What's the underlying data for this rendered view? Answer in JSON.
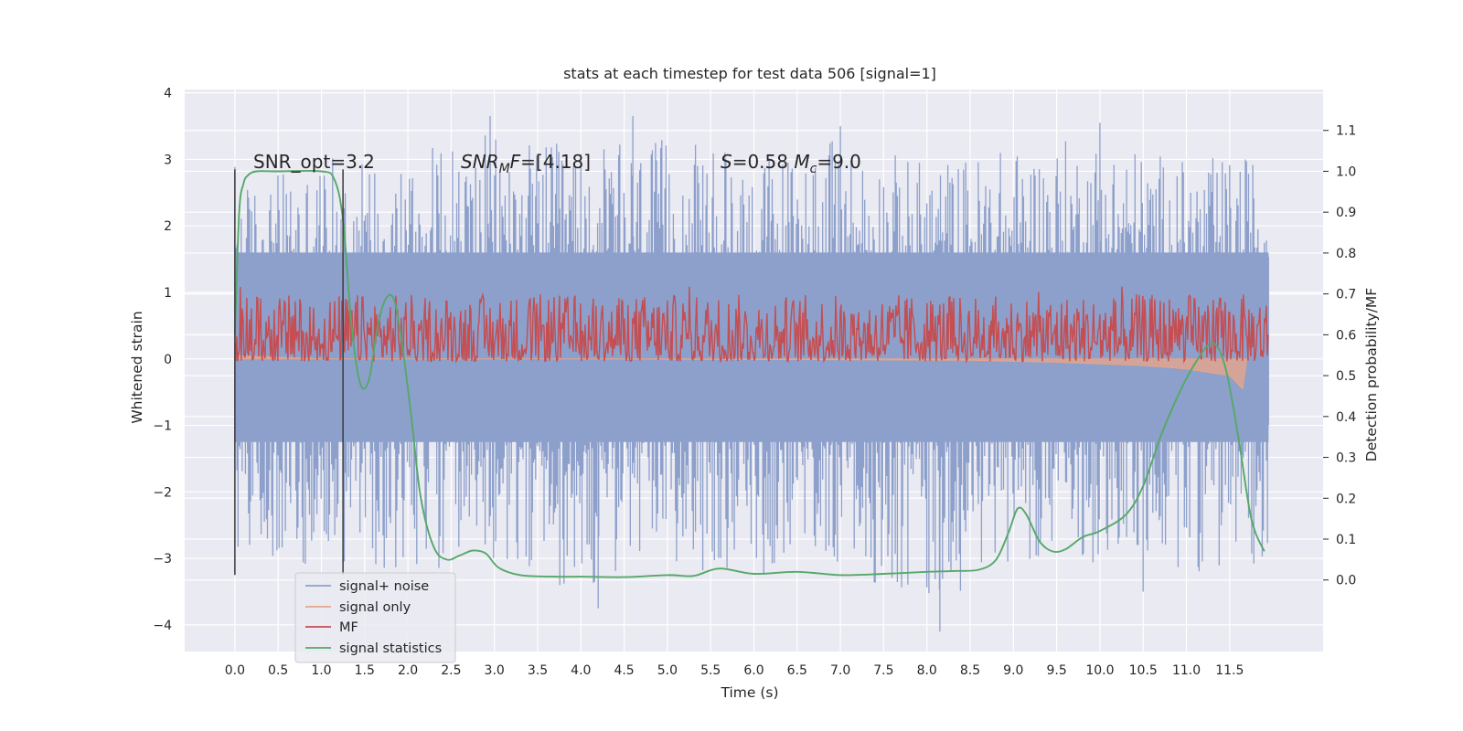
{
  "chart_data": {
    "type": "line",
    "title": "stats at each timestep for test data 506 [signal=1]",
    "xlabel": "Time (s)",
    "ylabel": "Whitened strain",
    "y2label": "Detection probability/MF",
    "xlim": [
      -0.58,
      12.58
    ],
    "ylim": [
      -4.4,
      4.05
    ],
    "y2lim": [
      -0.175,
      1.2
    ],
    "x_ticks": [
      "0.0",
      "0.5",
      "1.0",
      "1.5",
      "2.0",
      "2.5",
      "3.0",
      "3.5",
      "4.0",
      "4.5",
      "5.0",
      "5.5",
      "6.0",
      "6.5",
      "7.0",
      "7.5",
      "8.0",
      "8.5",
      "9.0",
      "9.5",
      "10.0",
      "10.5",
      "11.0",
      "11.5"
    ],
    "y_ticks": [
      "4",
      "3",
      "2",
      "1",
      "0",
      "−1",
      "−2",
      "−3",
      "−4"
    ],
    "y2_ticks": [
      "1.1",
      "1.0",
      "0.9",
      "0.8",
      "0.7",
      "0.6",
      "0.5",
      "0.4",
      "0.3",
      "0.2",
      "0.1",
      "0.0"
    ],
    "grid": true,
    "legend_position": "lower-left",
    "colors": {
      "background": "#eaeaf2",
      "grid": "#ffffff",
      "signal_noise": "#8da0cb",
      "signal_only": "#e5a58a",
      "mf": "#c44e52",
      "signal_statistics": "#55a868",
      "markers": "#3a3a3a"
    },
    "series": [
      {
        "name": "signal+ noise",
        "axis": "left",
        "style": "dense-noise",
        "x_range": [
          0.0,
          11.95
        ],
        "core_band": [
          -1.25,
          1.6
        ],
        "peak_envelope": [
          [
            0.0,
            -2.9,
            2.6
          ],
          [
            1.0,
            -3.2,
            3.0
          ],
          [
            2.0,
            -3.2,
            3.2
          ],
          [
            3.0,
            -3.2,
            3.4
          ],
          [
            4.0,
            -3.5,
            3.2
          ],
          [
            5.0,
            -3.1,
            3.3
          ],
          [
            6.0,
            -3.3,
            3.1
          ],
          [
            7.0,
            -3.1,
            3.3
          ],
          [
            8.0,
            -3.8,
            3.0
          ],
          [
            9.0,
            -3.0,
            3.2
          ],
          [
            10.0,
            -3.1,
            3.4
          ],
          [
            11.0,
            -3.2,
            3.0
          ],
          [
            11.95,
            -3.2,
            3.1
          ]
        ],
        "notable_peaks": [
          [
            2.95,
            3.65
          ],
          [
            4.6,
            3.65
          ],
          [
            7.0,
            3.5
          ],
          [
            10.0,
            3.55
          ],
          [
            4.2,
            -3.75
          ],
          [
            8.15,
            -4.1
          ],
          [
            10.5,
            -3.5
          ]
        ]
      },
      {
        "name": "signal only",
        "axis": "left",
        "style": "filled",
        "points": [
          [
            0.0,
            0.05
          ],
          [
            1.0,
            0.0
          ],
          [
            4.0,
            0.0
          ],
          [
            8.5,
            -0.02
          ],
          [
            9.5,
            -0.05
          ],
          [
            10.5,
            -0.1
          ],
          [
            11.0,
            -0.15
          ],
          [
            11.5,
            -0.25
          ],
          [
            11.65,
            -0.45
          ],
          [
            11.7,
            0.0
          ]
        ]
      },
      {
        "name": "MF",
        "axis": "right",
        "style": "noisy-line",
        "baseline": 0.58,
        "x_range": [
          0.0,
          11.95
        ],
        "envelope": [
          0.535,
          0.7
        ],
        "max": 0.72
      },
      {
        "name": "signal statistics",
        "axis": "right",
        "style": "line",
        "x": [
          0.0,
          0.05,
          0.1,
          0.15,
          0.25,
          0.5,
          1.0,
          1.15,
          1.25,
          1.35,
          1.45,
          1.55,
          1.65,
          1.75,
          1.85,
          1.95,
          2.05,
          2.15,
          2.3,
          2.45,
          2.6,
          2.75,
          2.9,
          3.05,
          3.3,
          3.7,
          4.0,
          4.5,
          5.0,
          5.3,
          5.6,
          6.0,
          6.5,
          7.0,
          7.5,
          8.0,
          8.3,
          8.6,
          8.8,
          8.95,
          9.05,
          9.15,
          9.3,
          9.45,
          9.6,
          9.8,
          10.0,
          10.3,
          10.5,
          10.7,
          10.9,
          11.1,
          11.3,
          11.45,
          11.6,
          11.75,
          11.9
        ],
        "y": [
          0.6,
          0.9,
          0.97,
          0.99,
          1.0,
          1.0,
          1.0,
          0.98,
          0.88,
          0.62,
          0.48,
          0.49,
          0.62,
          0.69,
          0.68,
          0.55,
          0.38,
          0.2,
          0.08,
          0.05,
          0.06,
          0.072,
          0.065,
          0.03,
          0.012,
          0.008,
          0.008,
          0.007,
          0.012,
          0.01,
          0.028,
          0.015,
          0.02,
          0.012,
          0.015,
          0.02,
          0.022,
          0.025,
          0.05,
          0.12,
          0.175,
          0.16,
          0.095,
          0.07,
          0.075,
          0.105,
          0.12,
          0.16,
          0.23,
          0.35,
          0.45,
          0.53,
          0.58,
          0.52,
          0.35,
          0.15,
          0.07
        ]
      }
    ],
    "vertical_markers": [
      {
        "x": 0.0,
        "y_range": [
          -3.25,
          2.85
        ]
      },
      {
        "x": 1.25,
        "y_range": [
          -3.25,
          2.85
        ]
      }
    ],
    "annotations": [
      {
        "text": "SNR_opt=3.2",
        "x": 0.2,
        "y": 2.88
      },
      {
        "text": "SNR_MF=[4.18]",
        "x": 2.6,
        "y": 2.88
      },
      {
        "text": "S=0.58   M_c=9.0",
        "x": 5.6,
        "y": 2.88
      }
    ]
  }
}
